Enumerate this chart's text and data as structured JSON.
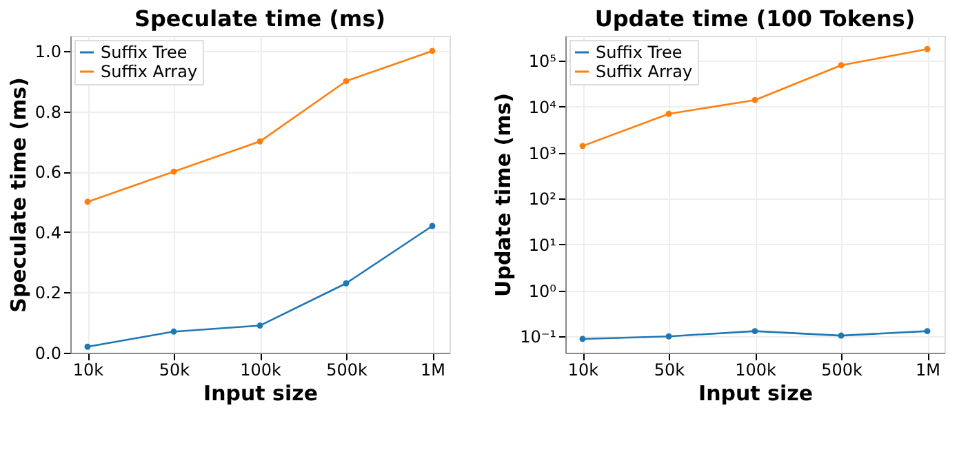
{
  "chart_data": [
    {
      "type": "line",
      "title": "Speculate time (ms)",
      "xlabel": "Input size",
      "ylabel": "Speculate time (ms)",
      "categories": [
        "10k",
        "50k",
        "100k",
        "500k",
        "1M"
      ],
      "series": [
        {
          "name": "Suffix Tree",
          "color": "#1f77b4",
          "values": [
            0.02,
            0.07,
            0.09,
            0.23,
            0.42
          ]
        },
        {
          "name": "Suffix Array",
          "color": "#ff7f0e",
          "values": [
            0.5,
            0.6,
            0.7,
            0.9,
            1.0
          ]
        }
      ],
      "ylim": [
        0,
        1.05
      ],
      "yticks": [
        {
          "value": 0,
          "label": "0.0"
        },
        0.2,
        0.4,
        0.6,
        0.8,
        {
          "value": 1,
          "label": "1.0"
        }
      ],
      "grid": true,
      "legend": "top left",
      "marker": "circle",
      "line_style": "solid"
    },
    {
      "type": "line",
      "title": "Update time (100 Tokens)",
      "xlabel": "Input size",
      "ylabel": "Update time (ms)",
      "categories": [
        "10k",
        "50k",
        "100k",
        "500k",
        "1M"
      ],
      "series": [
        {
          "name": "Suffix Tree",
          "color": "#1f77b4",
          "values": [
            0.088,
            0.1,
            0.13,
            0.104,
            0.13
          ]
        },
        {
          "name": "Suffix Array",
          "color": "#ff7f0e",
          "values": [
            1400,
            7000,
            14000,
            80000,
            180000
          ]
        }
      ],
      "log": "y",
      "ylim": [
        0.044,
        350000
      ],
      "yticks": [
        {
          "value": 0.1,
          "label": "10⁻¹"
        },
        {
          "value": 1,
          "label": "10⁰"
        },
        {
          "value": 10,
          "label": "10¹"
        },
        {
          "value": 100,
          "label": "10²"
        },
        {
          "value": 1000,
          "label": "10³"
        },
        {
          "value": 10000,
          "label": "10⁴"
        },
        {
          "value": 100000,
          "label": "10⁵"
        }
      ],
      "grid": true,
      "legend": "top left",
      "marker": "circle",
      "line_style": "solid"
    }
  ]
}
